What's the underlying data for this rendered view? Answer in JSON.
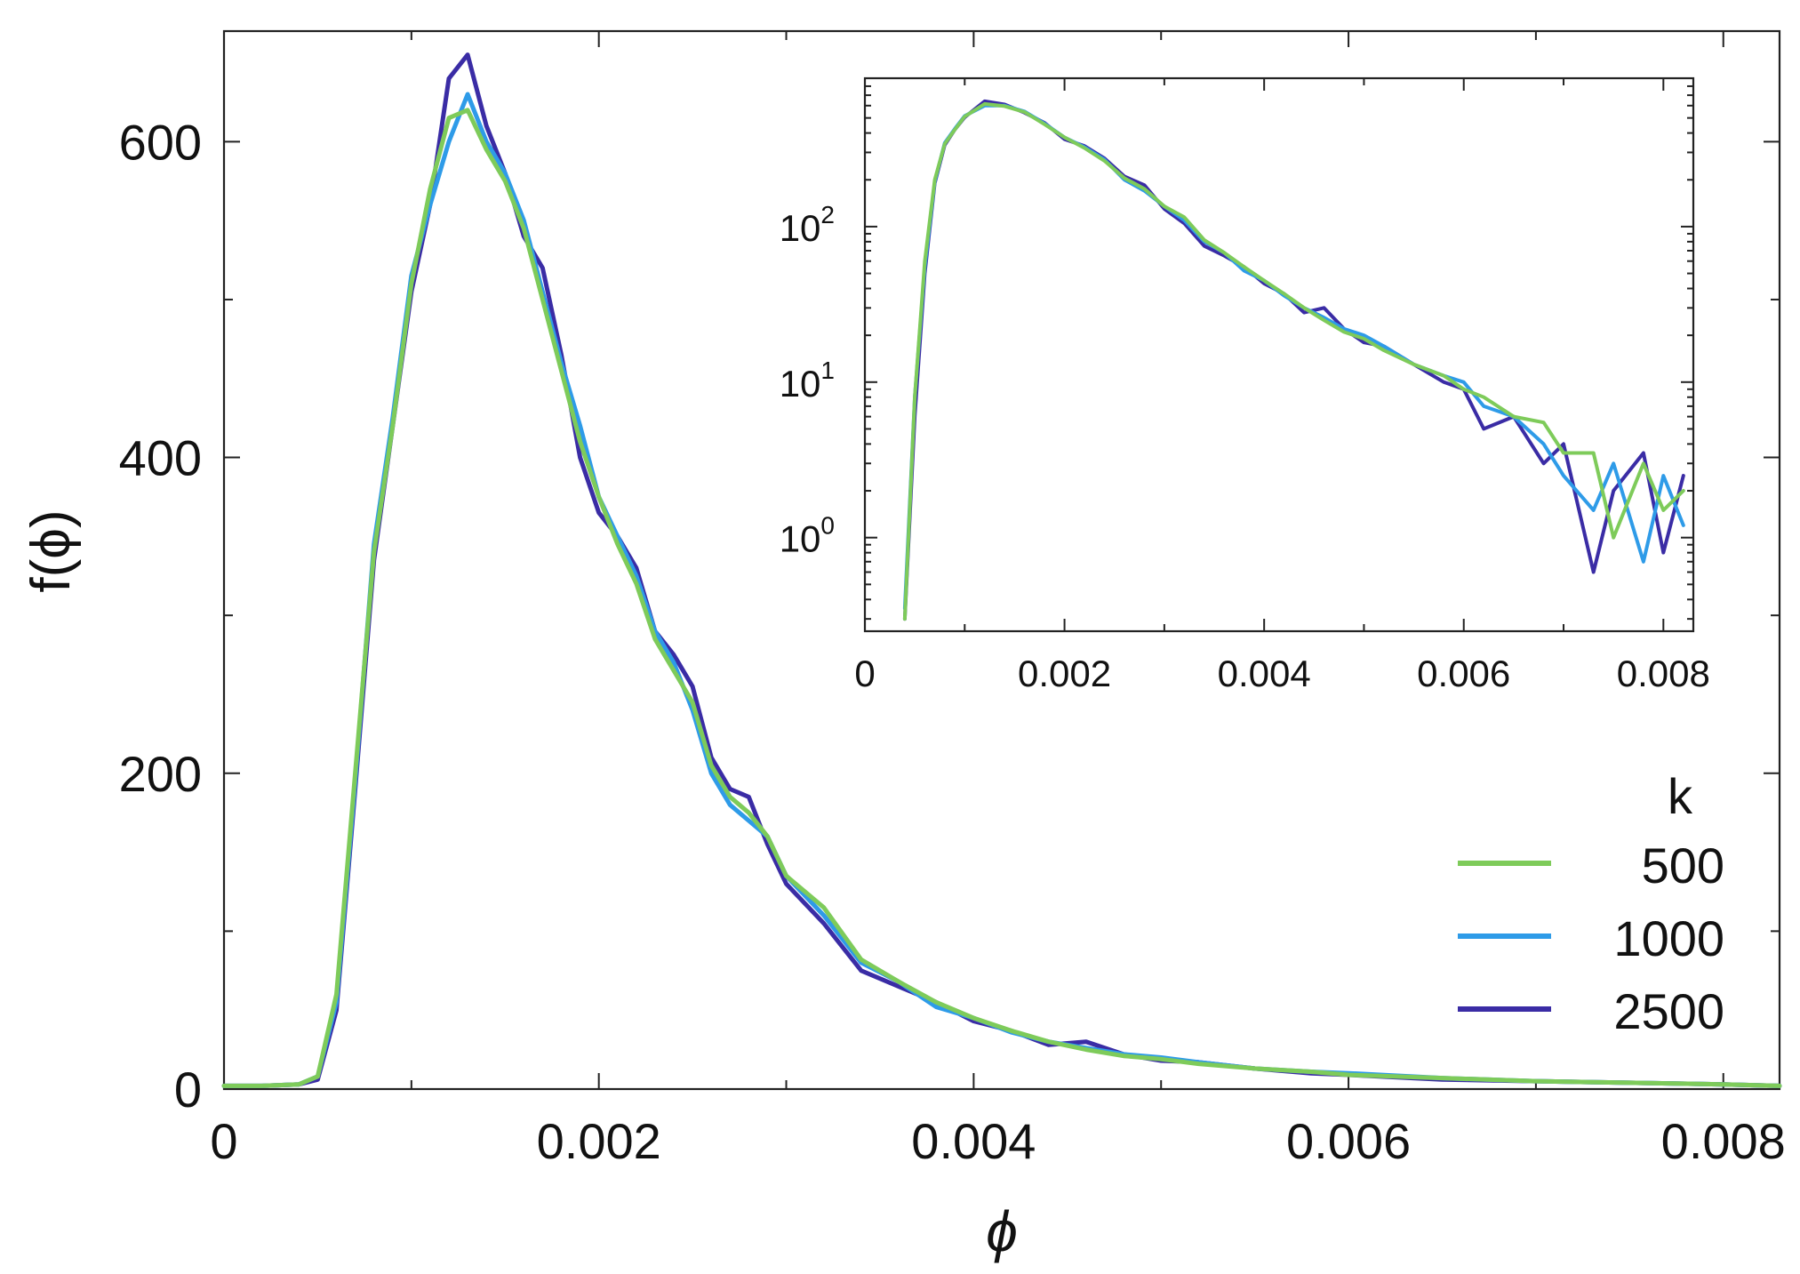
{
  "chart_data": [
    {
      "type": "line",
      "role": "main",
      "xlabel": "ϕ",
      "ylabel": "f(ϕ)",
      "xlim": [
        0,
        0.0083
      ],
      "ylim": [
        0,
        670
      ],
      "xticks": [
        0,
        0.002,
        0.004,
        0.006,
        0.008
      ],
      "xtick_labels": [
        "0",
        "0.002",
        "0.004",
        "0.006",
        "0.008"
      ],
      "yticks": [
        0,
        200,
        400,
        600
      ],
      "ytick_labels": [
        "0",
        "200",
        "400",
        "600"
      ],
      "x": [
        0,
        0.0002,
        0.0004,
        0.0005,
        0.0006,
        0.0007,
        0.0008,
        0.0009,
        0.001,
        0.0011,
        0.0012,
        0.0013,
        0.0014,
        0.0015,
        0.0016,
        0.0017,
        0.0018,
        0.0019,
        0.002,
        0.0021,
        0.0022,
        0.0023,
        0.0024,
        0.0025,
        0.0026,
        0.0027,
        0.0028,
        0.0029,
        0.003,
        0.0032,
        0.0034,
        0.0036,
        0.0038,
        0.004,
        0.0042,
        0.0044,
        0.0046,
        0.0048,
        0.005,
        0.0052,
        0.0055,
        0.0058,
        0.006,
        0.0065,
        0.007,
        0.0075,
        0.008,
        0.0083
      ],
      "series": [
        {
          "name": "500",
          "color": "#7ecb5a",
          "values": [
            2,
            2,
            3,
            8,
            60,
            200,
            340,
            420,
            510,
            570,
            615,
            620,
            595,
            575,
            545,
            500,
            455,
            410,
            375,
            345,
            320,
            285,
            265,
            245,
            205,
            185,
            175,
            160,
            135,
            115,
            82,
            68,
            55,
            45,
            37,
            30,
            25,
            21,
            19,
            16,
            13,
            11,
            9,
            7,
            5,
            4,
            3,
            2
          ]
        },
        {
          "name": "1000",
          "color": "#2e9be8",
          "values": [
            2,
            2,
            3,
            8,
            55,
            195,
            345,
            425,
            515,
            560,
            600,
            630,
            600,
            580,
            550,
            505,
            460,
            420,
            375,
            350,
            325,
            290,
            270,
            240,
            200,
            180,
            170,
            160,
            135,
            110,
            80,
            68,
            52,
            45,
            36,
            30,
            26,
            22,
            20,
            17,
            13,
            11,
            10,
            7,
            5,
            4,
            3,
            2
          ]
        },
        {
          "name": "2500",
          "color": "#3a2ca5",
          "values": [
            2,
            2,
            3,
            6,
            50,
            190,
            335,
            420,
            505,
            560,
            640,
            655,
            610,
            580,
            540,
            520,
            465,
            400,
            365,
            350,
            330,
            290,
            275,
            255,
            210,
            190,
            185,
            155,
            130,
            105,
            75,
            65,
            55,
            43,
            37,
            28,
            30,
            22,
            18,
            17,
            13,
            10,
            9,
            6,
            5,
            4,
            3,
            2
          ]
        }
      ],
      "legend": {
        "title": "k",
        "entries": [
          "500",
          "1000",
          "2500"
        ],
        "location": "bottom-right"
      }
    },
    {
      "type": "line",
      "role": "inset",
      "yscale": "log",
      "xlim": [
        0,
        0.0083
      ],
      "ylim": [
        0.25,
        900
      ],
      "xticks": [
        0,
        0.002,
        0.004,
        0.006,
        0.008
      ],
      "xtick_labels": [
        "0",
        "0.002",
        "0.004",
        "0.006",
        "0.008"
      ],
      "yticks": [
        1,
        10,
        100
      ],
      "ytick_labels": [
        {
          "base": "10",
          "exp": "0"
        },
        {
          "base": "10",
          "exp": "1"
        },
        {
          "base": "10",
          "exp": "2"
        }
      ],
      "x": [
        0.0004,
        0.0005,
        0.0006,
        0.0007,
        0.0008,
        0.0009,
        0.001,
        0.0012,
        0.0014,
        0.0016,
        0.0018,
        0.002,
        0.0022,
        0.0024,
        0.0026,
        0.0028,
        0.003,
        0.0032,
        0.0034,
        0.0036,
        0.0038,
        0.004,
        0.0042,
        0.0044,
        0.0046,
        0.0048,
        0.005,
        0.0052,
        0.0055,
        0.0058,
        0.006,
        0.0062,
        0.0065,
        0.0068,
        0.007,
        0.0073,
        0.0075,
        0.0078,
        0.008,
        0.0082
      ],
      "series": [
        {
          "name": "500",
          "color": "#7ecb5a",
          "values": [
            0.3,
            8,
            60,
            200,
            340,
            420,
            510,
            615,
            595,
            545,
            455,
            375,
            320,
            265,
            205,
            175,
            135,
            115,
            82,
            68,
            55,
            45,
            37,
            30,
            25,
            21,
            19,
            16,
            13,
            11,
            9,
            8,
            6,
            5.5,
            3.5,
            3.5,
            1.0,
            3,
            1.5,
            2
          ]
        },
        {
          "name": "1000",
          "color": "#2e9be8",
          "values": [
            0.35,
            8,
            55,
            195,
            345,
            425,
            515,
            600,
            600,
            550,
            460,
            375,
            325,
            270,
            200,
            170,
            135,
            110,
            80,
            68,
            52,
            45,
            36,
            30,
            26,
            22,
            20,
            17,
            13,
            11,
            10,
            7,
            6,
            4,
            2.5,
            1.5,
            3,
            0.7,
            2.5,
            1.2
          ]
        },
        {
          "name": "2500",
          "color": "#3a2ca5",
          "values": [
            0.3,
            6,
            50,
            190,
            335,
            420,
            505,
            640,
            610,
            540,
            465,
            365,
            330,
            275,
            210,
            185,
            130,
            105,
            75,
            65,
            55,
            43,
            37,
            28,
            30,
            22,
            18,
            17,
            13,
            10,
            9,
            5,
            6,
            3,
            4,
            0.6,
            2,
            3.5,
            0.8,
            2.5
          ]
        }
      ]
    }
  ]
}
